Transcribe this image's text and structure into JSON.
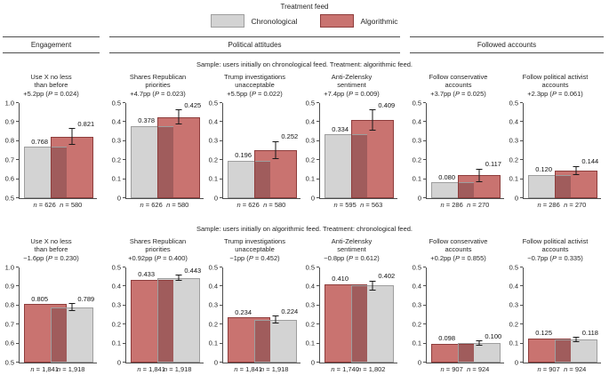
{
  "chart_data": {
    "type": "bar",
    "legend": {
      "title": "Treatment feed",
      "items": [
        {
          "label": "Chronological",
          "series": "Chronological"
        },
        {
          "label": "Algorithmic",
          "series": "Algorithmic"
        }
      ]
    },
    "colors": {
      "Chronological": {
        "fill": "#d3d3d3",
        "border": "#9e9e9e"
      },
      "Algorithmic": {
        "fill": "#c97370",
        "border": "#8e3d3c"
      },
      "overlap": "#a05c5c",
      "axis": "#4d4d4d"
    },
    "group_headers": [
      "Engagement",
      "Political attitudes",
      "Followed accounts"
    ],
    "rows": [
      {
        "caption": "Sample: users initially on chronological feed. Treatment: algorithmic feed.",
        "charts": [
          {
            "title": "Use X no less\nthan before",
            "effect": "+5.2pp (P = 0.024)",
            "ylim": [
              0.5,
              1.0
            ],
            "yticks": [
              "1.0",
              "0.9",
              "0.8",
              "0.7",
              "0.6",
              "0.5"
            ],
            "bars": [
              {
                "series": "Chronological",
                "value": 0.768,
                "label": "0.768",
                "n_label": "n = 626"
              },
              {
                "series": "Algorithmic",
                "value": 0.821,
                "label": "0.821",
                "n_label": "n = 580",
                "err": 0.045
              }
            ]
          },
          {
            "title": "Shares Republican\npriorities",
            "effect": "+4.7pp (P = 0.023)",
            "ylim": [
              0,
              0.5
            ],
            "yticks": [
              "0.5",
              "0.4",
              "0.3",
              "0.2",
              "0.1",
              "0"
            ],
            "bars": [
              {
                "series": "Chronological",
                "value": 0.378,
                "label": "0.378",
                "n_label": "n = 626"
              },
              {
                "series": "Algorithmic",
                "value": 0.425,
                "label": "0.425",
                "n_label": "n = 580",
                "err": 0.04
              }
            ]
          },
          {
            "title": "Trump investigations\nunacceptable",
            "effect": "+5.5pp (P = 0.022)",
            "ylim": [
              0,
              0.5
            ],
            "yticks": [
              "0.5",
              "0.4",
              "0.3",
              "0.2",
              "0.1",
              "0"
            ],
            "bars": [
              {
                "series": "Chronological",
                "value": 0.196,
                "label": "0.196",
                "n_label": "n = 626"
              },
              {
                "series": "Algorithmic",
                "value": 0.252,
                "label": "0.252",
                "n_label": "n = 580",
                "err": 0.047
              }
            ]
          },
          {
            "title": "Anti-Zelensky\nsentiment",
            "effect": "+7.4pp (P = 0.009)",
            "ylim": [
              0,
              0.5
            ],
            "yticks": [
              "0.5",
              "0.4",
              "0.3",
              "0.2",
              "0.1",
              "0"
            ],
            "bars": [
              {
                "series": "Chronological",
                "value": 0.334,
                "label": "0.334",
                "n_label": "n = 595"
              },
              {
                "series": "Algorithmic",
                "value": 0.409,
                "label": "0.409",
                "n_label": "n = 563",
                "err": 0.054
              }
            ]
          },
          {
            "title": "Follow conservative\naccounts",
            "effect": "+3.7pp (P = 0.025)",
            "ylim": [
              0,
              0.5
            ],
            "yticks": [
              "0.5",
              "0.4",
              "0.3",
              "0.2",
              "0.1",
              "0"
            ],
            "bars": [
              {
                "series": "Chronological",
                "value": 0.08,
                "label": "0.080",
                "n_label": "n = 286"
              },
              {
                "series": "Algorithmic",
                "value": 0.117,
                "label": "0.117",
                "n_label": "n = 270",
                "err": 0.035
              }
            ]
          },
          {
            "title": "Follow political activist\naccounts",
            "effect": "+2.3pp (P = 0.061)",
            "ylim": [
              0,
              0.5
            ],
            "yticks": [
              "0.5",
              "0.4",
              "0.3",
              "0.2",
              "0.1",
              "0"
            ],
            "bars": [
              {
                "series": "Chronological",
                "value": 0.12,
                "label": "0.120",
                "n_label": "n = 286"
              },
              {
                "series": "Algorithmic",
                "value": 0.144,
                "label": "0.144",
                "n_label": "n = 270",
                "err": 0.024
              }
            ]
          }
        ]
      },
      {
        "caption": "Sample: users initially on algorithmic feed. Treatment: chronological feed.",
        "charts": [
          {
            "title": "Use X no less\nthan before",
            "effect": "−1.6pp (P = 0.230)",
            "ylim": [
              0.5,
              1.0
            ],
            "yticks": [
              "1.0",
              "0.9",
              "0.8",
              "0.7",
              "0.6",
              "0.5"
            ],
            "bars": [
              {
                "series": "Algorithmic",
                "value": 0.805,
                "label": "0.805",
                "n_label": "n = 1,841"
              },
              {
                "series": "Chronological",
                "value": 0.789,
                "label": "0.789",
                "n_label": "n = 1,918",
                "err": 0.02
              }
            ]
          },
          {
            "title": "Shares Republican\npriorities",
            "effect": "+0.92pp (P = 0.400)",
            "ylim": [
              0,
              0.5
            ],
            "yticks": [
              "0.5",
              "0.4",
              "0.3",
              "0.2",
              "0.1",
              "0"
            ],
            "bars": [
              {
                "series": "Algorithmic",
                "value": 0.433,
                "label": "0.433",
                "n_label": "n = 1,841"
              },
              {
                "series": "Chronological",
                "value": 0.443,
                "label": "0.443",
                "n_label": "n = 1,918",
                "err": 0.016
              }
            ]
          },
          {
            "title": "Trump investigations\nunacceptable",
            "effect": "−1pp (P = 0.452)",
            "ylim": [
              0,
              0.5
            ],
            "yticks": [
              "0.5",
              "0.4",
              "0.3",
              "0.2",
              "0.1",
              "0"
            ],
            "bars": [
              {
                "series": "Algorithmic",
                "value": 0.234,
                "label": "0.234",
                "n_label": "n = 1,841"
              },
              {
                "series": "Chronological",
                "value": 0.224,
                "label": "0.224",
                "n_label": "n = 1,918",
                "err": 0.02
              }
            ]
          },
          {
            "title": "Anti-Zelensky\nsentiment",
            "effect": "−0.8pp (P = 0.612)",
            "ylim": [
              0,
              0.5
            ],
            "yticks": [
              "0.5",
              "0.4",
              "0.3",
              "0.2",
              "0.1",
              "0"
            ],
            "bars": [
              {
                "series": "Algorithmic",
                "value": 0.41,
                "label": "0.410",
                "n_label": "n = 1,740"
              },
              {
                "series": "Chronological",
                "value": 0.402,
                "label": "0.402",
                "n_label": "n = 1,802",
                "err": 0.026
              }
            ]
          },
          {
            "title": "Follow conservative\naccounts",
            "effect": "+0.2pp (P = 0.855)",
            "ylim": [
              0,
              0.5
            ],
            "yticks": [
              "0.5",
              "0.4",
              "0.3",
              "0.2",
              "0.1",
              "0"
            ],
            "bars": [
              {
                "series": "Algorithmic",
                "value": 0.098,
                "label": "0.098",
                "n_label": "n = 907"
              },
              {
                "series": "Chronological",
                "value": 0.1,
                "label": "0.100",
                "n_label": "n = 924",
                "err": 0.014
              }
            ]
          },
          {
            "title": "Follow political activist\naccounts",
            "effect": "−0.7pp (P = 0.335)",
            "ylim": [
              0,
              0.5
            ],
            "yticks": [
              "0.5",
              "0.4",
              "0.3",
              "0.2",
              "0.1",
              "0"
            ],
            "bars": [
              {
                "series": "Algorithmic",
                "value": 0.125,
                "label": "0.125",
                "n_label": "n = 907"
              },
              {
                "series": "Chronological",
                "value": 0.118,
                "label": "0.118",
                "n_label": "n = 924",
                "err": 0.015
              }
            ]
          }
        ]
      }
    ]
  }
}
